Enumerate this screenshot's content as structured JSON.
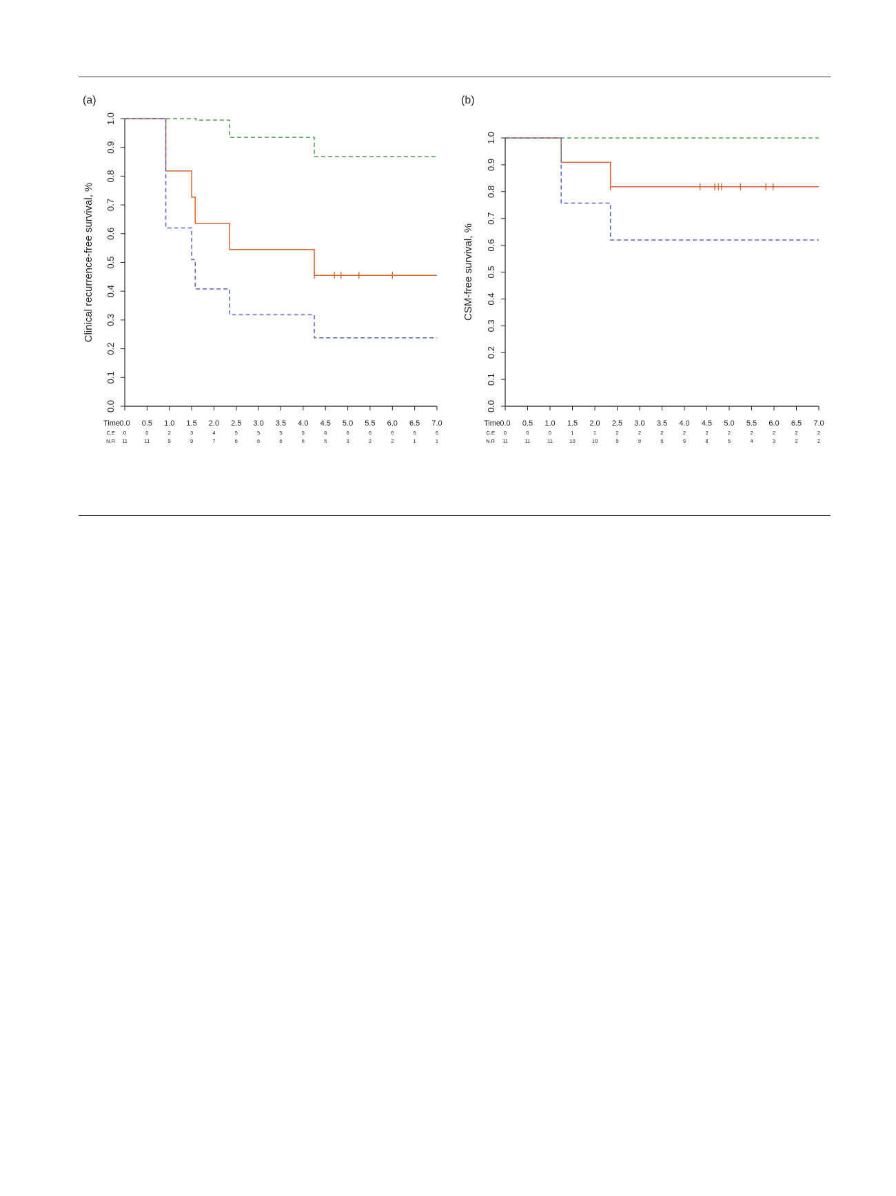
{
  "colors": {
    "orange": "#d9622b",
    "blue": "#5a63c7",
    "green": "#4aa34a",
    "axis": "#222222"
  },
  "chart_data": [
    {
      "type": "line",
      "subtype": "kaplan-meier",
      "panel_label": "(a)",
      "title": "",
      "xlabel": "Time",
      "ylabel": "Clinical recurrence-free survival, %",
      "xlim": [
        0,
        7
      ],
      "ylim": [
        0,
        1
      ],
      "x_ticks": [
        "0.0",
        "0.5",
        "1.0",
        "1.5",
        "2.0",
        "2.5",
        "3.0",
        "3.5",
        "4.0",
        "4.5",
        "5.0",
        "5.5",
        "6.0",
        "6.5",
        "7.0"
      ],
      "y_ticks": [
        "0.0",
        "0.1",
        "0.2",
        "0.3",
        "0.4",
        "0.5",
        "0.6",
        "0.7",
        "0.8",
        "0.9",
        "1.0"
      ],
      "series": [
        {
          "name": "green",
          "color_key": "green",
          "dashed": true,
          "steps": [
            [
              0,
              1.0
            ],
            [
              1.6,
              0.995
            ],
            [
              2.35,
              0.935
            ],
            [
              4.25,
              0.868
            ],
            [
              7.0,
              0.868
            ]
          ],
          "censor": []
        },
        {
          "name": "orange",
          "color_key": "orange",
          "dashed": false,
          "steps": [
            [
              0,
              1.0
            ],
            [
              0.92,
              0.818
            ],
            [
              1.5,
              0.727
            ],
            [
              1.58,
              0.636
            ],
            [
              2.35,
              0.545
            ],
            [
              4.25,
              0.455
            ],
            [
              7.0,
              0.455
            ]
          ],
          "censor": [
            4.25,
            4.7,
            4.85,
            5.25,
            6.0
          ]
        },
        {
          "name": "blue",
          "color_key": "blue",
          "dashed": true,
          "steps": [
            [
              0,
              1.0
            ],
            [
              0.92,
              0.62
            ],
            [
              1.5,
              0.51
            ],
            [
              1.58,
              0.408
            ],
            [
              2.35,
              0.318
            ],
            [
              4.25,
              0.238
            ],
            [
              7.0,
              0.238
            ]
          ],
          "censor": []
        }
      ],
      "risk_table": {
        "header": "Time",
        "rows": [
          {
            "label": "C.E",
            "values": [
              "0",
              "0",
              "2",
              "3",
              "4",
              "5",
              "5",
              "5",
              "5",
              "6",
              "6",
              "6",
              "6",
              "6",
              "6"
            ]
          },
          {
            "label": "N.R",
            "values": [
              "11",
              "11",
              "9",
              "9",
              "7",
              "6",
              "6",
              "6",
              "6",
              "5",
              "3",
              "2",
              "2",
              "1",
              "1"
            ]
          }
        ]
      }
    },
    {
      "type": "line",
      "subtype": "kaplan-meier",
      "panel_label": "(b)",
      "title": "",
      "xlabel": "Time",
      "ylabel": "CSM-free survival, %",
      "xlim": [
        0,
        7
      ],
      "ylim": [
        0,
        1
      ],
      "x_ticks": [
        "0.0",
        "0.5",
        "1.0",
        "1.5",
        "2.0",
        "2.5",
        "3.0",
        "3.5",
        "4.0",
        "4.5",
        "5.0",
        "5.5",
        "6.0",
        "6.5",
        "7.0"
      ],
      "y_ticks": [
        "0.0",
        "0.1",
        "0.2",
        "0.3",
        "0.4",
        "0.5",
        "0.6",
        "0.7",
        "0.8",
        "0.9",
        "1.0"
      ],
      "series": [
        {
          "name": "green",
          "color_key": "green",
          "dashed": true,
          "steps": [
            [
              0,
              1.0
            ],
            [
              7.0,
              1.0
            ]
          ],
          "censor": []
        },
        {
          "name": "orange",
          "color_key": "orange",
          "dashed": false,
          "steps": [
            [
              0,
              1.0
            ],
            [
              1.25,
              0.909
            ],
            [
              2.35,
              0.818
            ],
            [
              7.0,
              0.818
            ]
          ],
          "censor": [
            2.35,
            4.35,
            4.68,
            4.76,
            4.83,
            5.25,
            5.82,
            5.98
          ]
        },
        {
          "name": "blue",
          "color_key": "blue",
          "dashed": true,
          "steps": [
            [
              0,
              1.0
            ],
            [
              1.25,
              0.757
            ],
            [
              2.35,
              0.62
            ],
            [
              7.0,
              0.62
            ]
          ],
          "censor": []
        }
      ],
      "risk_table": {
        "header": "Time",
        "rows": [
          {
            "label": "C.E",
            "values": [
              "0",
              "0",
              "0",
              "1",
              "1",
              "2",
              "2",
              "2",
              "2",
              "2",
              "2",
              "2",
              "2",
              "2",
              "2"
            ]
          },
          {
            "label": "N.R",
            "values": [
              "11",
              "11",
              "11",
              "10",
              "10",
              "9",
              "9",
              "9",
              "9",
              "8",
              "5",
              "4",
              "3",
              "2",
              "2"
            ]
          }
        ]
      }
    }
  ]
}
